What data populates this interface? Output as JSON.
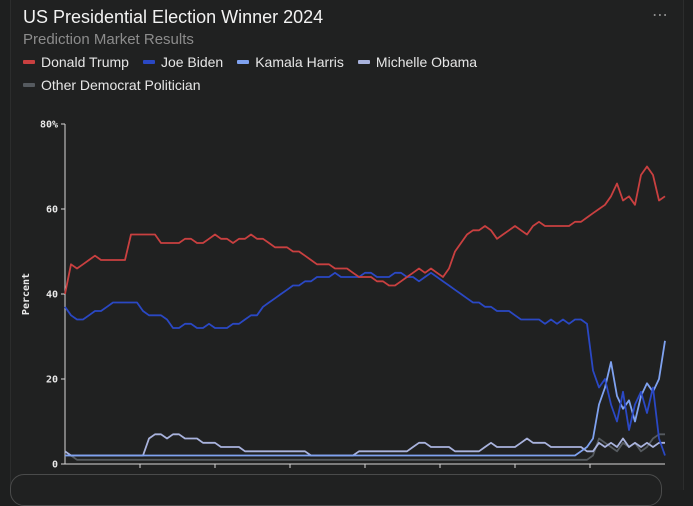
{
  "header": {
    "title": "US Presidential Election Winner 2024",
    "subtitle": "Prediction Market Results",
    "menu_icon": "⋯"
  },
  "legend": [
    {
      "label": "Donald Trump",
      "color": "#c94040"
    },
    {
      "label": "Joe Biden",
      "color": "#2a48c4"
    },
    {
      "label": "Kamala Harris",
      "color": "#7fa2f0"
    },
    {
      "label": "Michelle Obama",
      "color": "#a9b3dd"
    },
    {
      "label": "Other Democrat Politician",
      "color": "#555a5f"
    }
  ],
  "chart_data": {
    "type": "line",
    "ylabel": "Percent",
    "ylim": [
      0,
      80
    ],
    "yticks": [
      "0",
      "20",
      "40",
      "60",
      "80%"
    ],
    "grid": false,
    "legend_position": "top",
    "series": [
      {
        "name": "Donald Trump",
        "color": "#c94040",
        "values": [
          40,
          47,
          46,
          47,
          48,
          49,
          48,
          48,
          48,
          48,
          48,
          54,
          54,
          54,
          54,
          54,
          52,
          52,
          52,
          52,
          53,
          53,
          52,
          52,
          53,
          54,
          53,
          53,
          52,
          53,
          53,
          54,
          53,
          53,
          52,
          51,
          51,
          51,
          50,
          50,
          49,
          48,
          47,
          47,
          47,
          46,
          46,
          46,
          45,
          44,
          44,
          44,
          43,
          43,
          42,
          42,
          43,
          44,
          45,
          46,
          45,
          46,
          45,
          44,
          46,
          50,
          52,
          54,
          55,
          55,
          56,
          55,
          53,
          54,
          55,
          56,
          55,
          54,
          56,
          57,
          56,
          56,
          56,
          56,
          56,
          57,
          57,
          58,
          59,
          60,
          61,
          63,
          66,
          62,
          63,
          61,
          68,
          70,
          68,
          62,
          63
        ]
      },
      {
        "name": "Joe Biden",
        "color": "#2a48c4",
        "values": [
          37,
          35,
          34,
          34,
          35,
          36,
          36,
          37,
          38,
          38,
          38,
          38,
          38,
          36,
          35,
          35,
          35,
          34,
          32,
          32,
          33,
          33,
          32,
          32,
          33,
          32,
          32,
          32,
          33,
          33,
          34,
          35,
          35,
          37,
          38,
          39,
          40,
          41,
          42,
          42,
          43,
          43,
          44,
          44,
          44,
          45,
          44,
          44,
          44,
          44,
          45,
          45,
          44,
          44,
          44,
          45,
          45,
          44,
          44,
          43,
          44,
          45,
          44,
          43,
          42,
          41,
          40,
          39,
          38,
          38,
          37,
          37,
          36,
          36,
          36,
          35,
          34,
          34,
          34,
          34,
          33,
          34,
          33,
          34,
          33,
          34,
          34,
          33,
          22,
          18,
          20,
          14,
          10,
          17,
          8,
          14,
          17,
          12,
          18,
          6,
          2
        ]
      },
      {
        "name": "Kamala Harris",
        "color": "#7fa2f0",
        "values": [
          2,
          2,
          2,
          2,
          2,
          2,
          2,
          2,
          2,
          2,
          2,
          2,
          2,
          2,
          2,
          2,
          2,
          2,
          2,
          2,
          2,
          2,
          2,
          2,
          2,
          2,
          2,
          2,
          2,
          2,
          2,
          2,
          2,
          2,
          2,
          2,
          2,
          2,
          2,
          2,
          2,
          2,
          2,
          2,
          2,
          2,
          2,
          2,
          2,
          2,
          2,
          2,
          2,
          2,
          2,
          2,
          2,
          2,
          2,
          2,
          2,
          2,
          2,
          2,
          2,
          2,
          2,
          2,
          2,
          2,
          2,
          2,
          2,
          2,
          2,
          2,
          2,
          2,
          2,
          2,
          2,
          2,
          2,
          2,
          2,
          2,
          3,
          4,
          6,
          14,
          18,
          24,
          16,
          13,
          15,
          10,
          16,
          19,
          17,
          20,
          29
        ]
      },
      {
        "name": "Michelle Obama",
        "color": "#a9b3dd",
        "values": [
          3,
          2,
          2,
          2,
          2,
          2,
          2,
          2,
          2,
          2,
          2,
          2,
          2,
          2,
          6,
          7,
          7,
          6,
          7,
          7,
          6,
          6,
          6,
          5,
          5,
          5,
          4,
          4,
          4,
          4,
          3,
          3,
          3,
          3,
          3,
          3,
          3,
          3,
          3,
          3,
          3,
          2,
          2,
          2,
          2,
          2,
          2,
          2,
          2,
          3,
          3,
          3,
          3,
          3,
          3,
          3,
          3,
          3,
          4,
          5,
          5,
          4,
          4,
          4,
          4,
          3,
          3,
          3,
          3,
          3,
          4,
          5,
          4,
          4,
          4,
          4,
          5,
          6,
          5,
          5,
          5,
          4,
          4,
          4,
          4,
          4,
          4,
          3,
          3,
          5,
          4,
          5,
          4,
          6,
          4,
          5,
          4,
          5,
          4,
          5,
          5
        ]
      },
      {
        "name": "Other Democrat Politician",
        "color": "#555a5f",
        "values": [
          2,
          2,
          1,
          1,
          1,
          1,
          1,
          1,
          1,
          1,
          1,
          1,
          1,
          1,
          1,
          1,
          1,
          1,
          1,
          1,
          1,
          1,
          1,
          1,
          1,
          1,
          1,
          1,
          1,
          1,
          1,
          1,
          1,
          1,
          1,
          1,
          1,
          1,
          1,
          1,
          1,
          1,
          1,
          1,
          1,
          1,
          1,
          1,
          1,
          1,
          1,
          1,
          1,
          1,
          1,
          1,
          1,
          1,
          1,
          1,
          1,
          1,
          1,
          1,
          1,
          1,
          1,
          1,
          1,
          1,
          1,
          1,
          1,
          1,
          1,
          1,
          1,
          1,
          1,
          1,
          1,
          1,
          1,
          1,
          1,
          1,
          1,
          1,
          2,
          6,
          5,
          4,
          3,
          5,
          4,
          5,
          3,
          4,
          6,
          7,
          7
        ]
      }
    ]
  }
}
